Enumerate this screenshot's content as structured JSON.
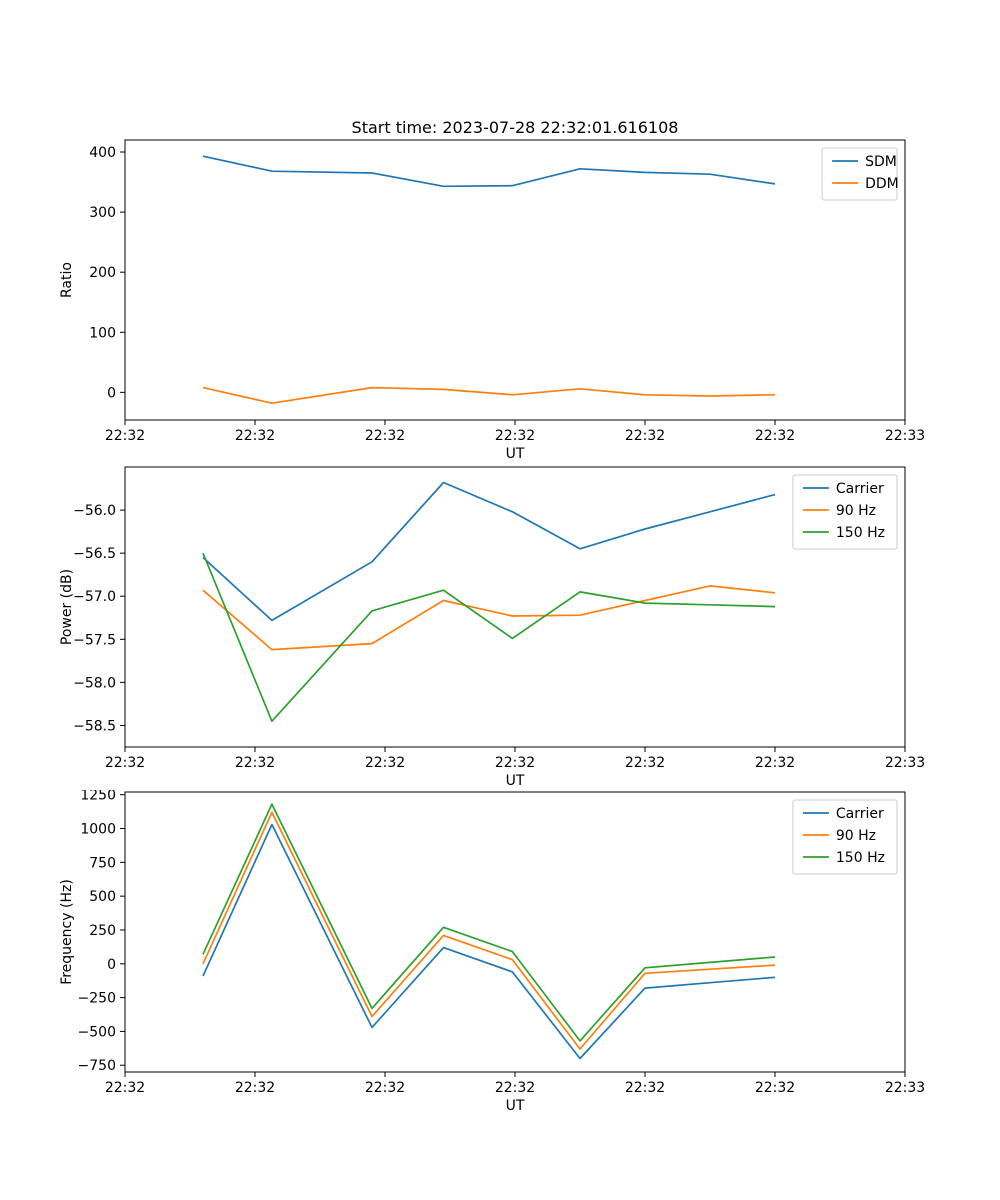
{
  "figure": {
    "background": "#ffffff",
    "accent_colors": {
      "blue": "#1f77b4",
      "orange": "#ff7f0e",
      "green": "#2ca02c"
    }
  },
  "chart_data": [
    {
      "type": "line",
      "title": "Start time: 2023-07-28 22:32:01.616108",
      "xlabel": "UT",
      "ylabel": "Ratio",
      "legend_position": "upper right",
      "grid": false,
      "xlim": [
        0,
        60
      ],
      "ylim": [
        -46,
        420
      ],
      "x_tick_positions": [
        0,
        10,
        20,
        30,
        40,
        50,
        60
      ],
      "x_tick_labels": [
        "22:32",
        "22:32",
        "22:32",
        "22:32",
        "22:32",
        "22:32",
        "22:33"
      ],
      "y_ticks": [
        0,
        100,
        200,
        300,
        400
      ],
      "y_tick_labels": [
        "0",
        "100",
        "200",
        "300",
        "400"
      ],
      "x": [
        6,
        11.3,
        19,
        24.5,
        29.8,
        35,
        40,
        45,
        50
      ],
      "series": [
        {
          "name": "SDM",
          "color": "#1f77b4",
          "values": [
            393,
            368,
            365,
            343,
            344,
            372,
            366,
            363,
            347
          ]
        },
        {
          "name": "DDM",
          "color": "#ff7f0e",
          "values": [
            8,
            -18,
            8,
            5,
            -4,
            6,
            -4,
            -6,
            -4
          ]
        }
      ]
    },
    {
      "type": "line",
      "title": "",
      "xlabel": "UT",
      "ylabel": "Power (dB)",
      "legend_position": "upper right",
      "grid": false,
      "xlim": [
        0,
        60
      ],
      "ylim": [
        -58.75,
        -55.5
      ],
      "x_tick_positions": [
        0,
        10,
        20,
        30,
        40,
        50,
        60
      ],
      "x_tick_labels": [
        "22:32",
        "22:32",
        "22:32",
        "22:32",
        "22:32",
        "22:32",
        "22:33"
      ],
      "y_ticks": [
        -58.5,
        -58.0,
        -57.5,
        -57.0,
        -56.5,
        -56.0
      ],
      "y_tick_labels": [
        "−58.5",
        "−58.0",
        "−57.5",
        "−57.0",
        "−56.5",
        "−56.0"
      ],
      "x": [
        6,
        11.3,
        19,
        24.5,
        29.8,
        35,
        40,
        45,
        50
      ],
      "series": [
        {
          "name": "Carrier",
          "color": "#1f77b4",
          "values": [
            -56.55,
            -57.28,
            -56.6,
            -55.68,
            -56.02,
            -56.45,
            -56.22,
            -56.02,
            -55.82
          ]
        },
        {
          "name": "90 Hz",
          "color": "#ff7f0e",
          "values": [
            -56.93,
            -57.62,
            -57.55,
            -57.05,
            -57.23,
            -57.22,
            -57.05,
            -56.88,
            -56.96
          ]
        },
        {
          "name": "150 Hz",
          "color": "#2ca02c",
          "values": [
            -56.5,
            -58.45,
            -57.17,
            -56.93,
            -57.49,
            -56.95,
            -57.08,
            -57.1,
            -57.12
          ]
        }
      ]
    },
    {
      "type": "line",
      "title": "",
      "xlabel": "UT",
      "ylabel": "Frequency (Hz)",
      "legend_position": "upper right",
      "grid": false,
      "xlim": [
        0,
        60
      ],
      "ylim": [
        -800,
        1270
      ],
      "x_tick_positions": [
        0,
        10,
        20,
        30,
        40,
        50,
        60
      ],
      "x_tick_labels": [
        "22:32",
        "22:32",
        "22:32",
        "22:32",
        "22:32",
        "22:32",
        "22:33"
      ],
      "y_ticks": [
        -750,
        -500,
        -250,
        0,
        250,
        500,
        750,
        1000,
        1250
      ],
      "y_tick_labels": [
        "−750",
        "−500",
        "−250",
        "0",
        "250",
        "500",
        "750",
        "1000",
        "1250"
      ],
      "x": [
        6,
        11.3,
        19,
        24.5,
        29.8,
        35,
        40,
        45,
        50
      ],
      "series": [
        {
          "name": "Carrier",
          "color": "#1f77b4",
          "values": [
            -90,
            1030,
            -470,
            120,
            -60,
            -700,
            -180,
            -140,
            -100
          ]
        },
        {
          "name": "90 Hz",
          "color": "#ff7f0e",
          "values": [
            0,
            1120,
            -390,
            210,
            30,
            -630,
            -70,
            -40,
            -10
          ]
        },
        {
          "name": "150 Hz",
          "color": "#2ca02c",
          "values": [
            70,
            1180,
            -330,
            270,
            90,
            -570,
            -30,
            10,
            50
          ]
        }
      ]
    }
  ]
}
